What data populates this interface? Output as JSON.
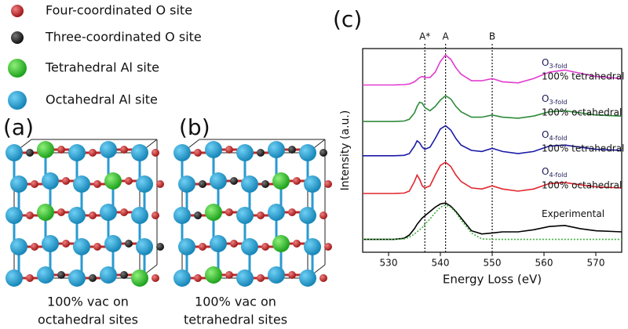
{
  "legend": [
    "Four-coordinated O site",
    "Three-coordinated O site",
    "Tetrahedral Al site",
    "Octahedral Al site"
  ],
  "panels": [
    {
      "label": "(a)",
      "caption": [
        "100% vac on",
        "octahedral sites"
      ]
    },
    {
      "label": "(b)",
      "caption": [
        "100% vac on",
        "tetrahedral sites"
      ]
    }
  ],
  "chart_data": {
    "type": "line",
    "panel_label": "(c)",
    "x_label": "Energy Loss (eV)",
    "y_label": "Intensity (a.u.)",
    "xlim": [
      525,
      575
    ],
    "xticks": [
      530,
      540,
      550,
      560,
      570
    ],
    "ylim": [
      0,
      9.5
    ],
    "x": [
      525,
      528,
      531,
      533,
      534,
      535,
      535.5,
      536,
      536.5,
      537,
      538,
      539,
      540,
      541,
      542,
      543,
      544,
      546,
      548,
      550,
      552,
      555,
      558,
      561,
      564,
      567,
      570,
      575
    ],
    "annotations": [
      {
        "label": "A*",
        "x": 537
      },
      {
        "label": "A",
        "x": 541
      },
      {
        "label": "B",
        "x": 550
      }
    ],
    "series": [
      {
        "label": {
          "main": "O",
          "sub": "3-fold",
          "line2": "100% tetrahedral"
        },
        "color": "#e23bd0",
        "values": [
          7.8,
          7.8,
          7.8,
          7.82,
          7.85,
          7.95,
          8.05,
          8.15,
          8.2,
          8.15,
          8.15,
          8.4,
          8.9,
          9.2,
          9.0,
          8.6,
          8.3,
          8.0,
          8.0,
          8.1,
          7.95,
          7.9,
          8.1,
          8.4,
          8.5,
          8.35,
          8.2,
          8.1
        ]
      },
      {
        "label": {
          "main": "O",
          "sub": "3-fold",
          "line2": "100% octahedral"
        },
        "color": "#2e8b3a",
        "values": [
          6.1,
          6.1,
          6.1,
          6.12,
          6.2,
          6.5,
          6.8,
          7.0,
          6.95,
          6.75,
          6.6,
          6.8,
          7.1,
          7.3,
          7.15,
          6.8,
          6.55,
          6.3,
          6.3,
          6.4,
          6.3,
          6.25,
          6.35,
          6.55,
          6.6,
          6.5,
          6.4,
          6.35
        ]
      },
      {
        "label": {
          "main": "O",
          "sub": "4-fold",
          "line2": "100% tetrahedral"
        },
        "color": "#1a1aa8",
        "values": [
          4.5,
          4.5,
          4.5,
          4.52,
          4.6,
          4.95,
          5.2,
          5.1,
          4.9,
          4.8,
          4.9,
          5.3,
          5.75,
          5.9,
          5.7,
          5.3,
          5.0,
          4.75,
          4.7,
          4.85,
          4.7,
          4.6,
          4.7,
          4.95,
          5.0,
          4.9,
          4.8,
          4.75
        ]
      },
      {
        "label": {
          "main": "O",
          "sub": "4-fold",
          "line2": "100% octahedral"
        },
        "color": "#e0262e",
        "values": [
          2.74,
          2.74,
          2.74,
          2.76,
          2.85,
          3.3,
          3.6,
          3.4,
          3.1,
          3.0,
          3.1,
          3.6,
          4.05,
          4.2,
          4.0,
          3.6,
          3.3,
          3.0,
          2.95,
          3.1,
          2.95,
          2.85,
          2.95,
          3.2,
          3.25,
          3.15,
          3.05,
          3.0
        ]
      },
      {
        "label": {
          "main": "Experimental"
        },
        "color": "#000000",
        "values": [
          0.6,
          0.6,
          0.6,
          0.65,
          0.8,
          1.1,
          1.3,
          1.45,
          1.6,
          1.7,
          1.9,
          2.1,
          2.25,
          2.3,
          2.15,
          1.9,
          1.6,
          1.0,
          0.85,
          0.9,
          0.95,
          0.95,
          1.05,
          1.2,
          1.25,
          1.1,
          1.0,
          0.95
        ]
      },
      {
        "color": "#3fae3f",
        "dash": "2 2",
        "values": [
          0.6,
          0.6,
          0.6,
          0.62,
          0.7,
          0.85,
          0.95,
          1.05,
          1.15,
          1.3,
          1.55,
          1.85,
          2.1,
          2.2,
          2.1,
          1.85,
          1.5,
          0.9,
          0.62,
          0.6,
          0.6,
          0.6,
          0.6,
          0.6,
          0.6,
          0.6,
          0.6,
          0.6
        ]
      }
    ]
  }
}
